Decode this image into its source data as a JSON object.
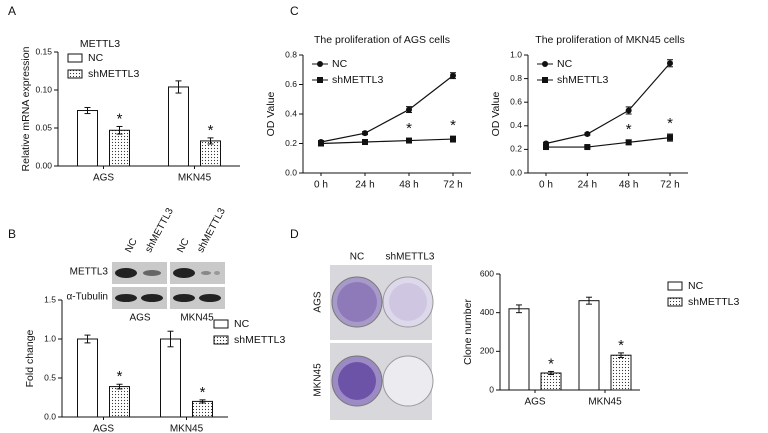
{
  "panels": [
    "A",
    "B",
    "C",
    "D"
  ],
  "blot": {
    "columns": [
      "NC",
      "shMETTL3",
      "NC",
      "shMETTL3"
    ],
    "rows": [
      "METTL3",
      "α-Tubulin"
    ],
    "groups": [
      "AGS",
      "MKN45"
    ]
  },
  "colony": {
    "columns": [
      "NC",
      "shMETTL3"
    ],
    "rows": [
      "AGS",
      "MKN45"
    ]
  },
  "chart_data": [
    {
      "type": "bar",
      "title": "METTL3",
      "y_label": "Relative mRNA expression",
      "categories": [
        "AGS",
        "MKN45"
      ],
      "series": [
        {
          "name": "NC",
          "color": "#ffffff",
          "values": [
            0.073,
            0.104
          ],
          "errors": [
            0.004,
            0.008
          ]
        },
        {
          "name": "shMETTL3",
          "color": "#ffffff",
          "pattern": "dots",
          "values": [
            0.047,
            0.033
          ],
          "errors": [
            0.005,
            0.004
          ],
          "annotations": [
            "*",
            "*"
          ]
        }
      ],
      "ylim": [
        0,
        0.15
      ],
      "yticks": [
        {
          "value": 0,
          "label": "0.00"
        },
        {
          "value": 0.05,
          "label": "0.05"
        },
        {
          "value": 0.1,
          "label": "0.10"
        },
        {
          "value": 0.15,
          "label": "0.15"
        }
      ],
      "legend": "upper left"
    },
    {
      "type": "line",
      "title": "The proliferation of AGS cells",
      "y_label": "OD Value",
      "categories": [
        "0 h",
        "24 h",
        "48 h",
        "72 h"
      ],
      "series": [
        {
          "name": "NC",
          "color": "#111111",
          "marker": "circle",
          "values": [
            0.21,
            0.27,
            0.43,
            0.66
          ],
          "errors": [
            0.01,
            0.01,
            0.02,
            0.02
          ]
        },
        {
          "name": "shMETTL3",
          "color": "#111111",
          "marker": "square",
          "values": [
            0.2,
            0.21,
            0.22,
            0.23
          ],
          "errors": [
            0.01,
            0.01,
            0.01,
            0.02
          ],
          "annotations": [
            null,
            null,
            "*",
            "*"
          ]
        }
      ],
      "ylim": [
        0,
        0.8
      ],
      "yticks": [
        {
          "value": 0,
          "label": "0.0"
        },
        0.2,
        0.4,
        0.6,
        0.8
      ],
      "legend": "upper left"
    },
    {
      "type": "line",
      "title": "The proliferation of MKN45 cells",
      "y_label": "OD Value",
      "categories": [
        "0 h",
        "24 h",
        "48 h",
        "72 h"
      ],
      "series": [
        {
          "name": "NC",
          "color": "#111111",
          "marker": "circle",
          "values": [
            0.25,
            0.33,
            0.53,
            0.93
          ],
          "errors": [
            0.01,
            0.01,
            0.03,
            0.03
          ]
        },
        {
          "name": "shMETTL3",
          "color": "#111111",
          "marker": "square",
          "values": [
            0.22,
            0.22,
            0.26,
            0.3
          ],
          "errors": [
            0.01,
            0.01,
            0.02,
            0.03
          ],
          "annotations": [
            null,
            null,
            "*",
            "*"
          ]
        }
      ],
      "ylim": [
        0,
        1
      ],
      "yticks": [
        {
          "value": 0,
          "label": "0.0"
        },
        0.2,
        0.4,
        0.6,
        0.8,
        {
          "value": 1,
          "label": "1.0"
        }
      ],
      "legend": "upper left"
    },
    {
      "type": "bar",
      "y_label": "Fold change",
      "categories": [
        "AGS",
        "MKN45"
      ],
      "series": [
        {
          "name": "NC",
          "color": "#ffffff",
          "values": [
            1,
            1
          ],
          "errors": [
            0.05,
            0.1
          ]
        },
        {
          "name": "shMETTL3",
          "color": "#ffffff",
          "pattern": "dots",
          "values": [
            0.39,
            0.2
          ],
          "errors": [
            0.03,
            0.02
          ],
          "annotations": [
            "*",
            "*"
          ]
        }
      ],
      "ylim": [
        0,
        1.5
      ],
      "yticks": [
        {
          "value": 0,
          "label": "0.0"
        },
        0.5,
        {
          "value": 1,
          "label": "1.0"
        },
        1.5
      ],
      "legend": "right"
    },
    {
      "type": "bar",
      "y_label": "Clone number",
      "categories": [
        "AGS",
        "MKN45"
      ],
      "series": [
        {
          "name": "NC",
          "color": "#ffffff",
          "values": [
            420,
            462
          ],
          "errors": [
            20,
            18
          ]
        },
        {
          "name": "shMETTL3",
          "color": "#ffffff",
          "pattern": "dots",
          "values": [
            88,
            180
          ],
          "errors": [
            8,
            12
          ],
          "annotations": [
            "*",
            "*"
          ]
        }
      ],
      "ylim": [
        0,
        600
      ],
      "yticks": [
        0,
        200,
        400,
        600
      ],
      "legend": "right"
    }
  ]
}
